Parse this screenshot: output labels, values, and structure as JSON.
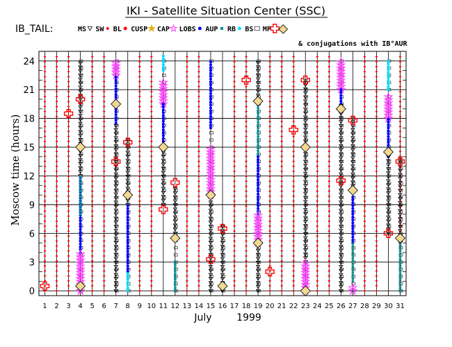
{
  "chart_data": {
    "type": "scatter",
    "title": "IKI - Satellite Situation Center (SSC)",
    "legend_title": "IB_TAIL:",
    "legend": [
      {
        "key": "MS",
        "label": "MS",
        "marker": "triangle-down",
        "color": "#000000"
      },
      {
        "key": "SW",
        "label": "SW",
        "marker": "diamond-small",
        "color": "#ff0000"
      },
      {
        "key": "BL",
        "label": "BL",
        "marker": "dot",
        "color": "#ff0000"
      },
      {
        "key": "CUSP",
        "label": "CUSP",
        "marker": "star",
        "color": "#e0b020"
      },
      {
        "key": "CAP",
        "label": "CAP",
        "marker": "star",
        "color": "#ff40ff"
      },
      {
        "key": "LOBS",
        "label": "LOBS",
        "marker": "dot",
        "color": "#0000ff"
      },
      {
        "key": "AUP",
        "label": "AUP",
        "marker": "square-small",
        "color": "#009090"
      },
      {
        "key": "RB",
        "label": "RB",
        "marker": "dot",
        "color": "#00e0ff"
      },
      {
        "key": "BS",
        "label": "BS",
        "marker": "square-open",
        "color": "#444444"
      },
      {
        "key": "MP",
        "label": "MP",
        "marker": "cross",
        "color": "#ff0000"
      }
    ],
    "conjugation_label": "& conjugations with IB°AUR",
    "ylabel": "Moscow time (hours)",
    "yticks": [
      0,
      3,
      6,
      9,
      12,
      15,
      18,
      21,
      24
    ],
    "ylim": [
      -0.5,
      25
    ],
    "xlim": [
      0.5,
      31.5
    ],
    "xticks": [
      1,
      2,
      3,
      4,
      5,
      6,
      7,
      8,
      9,
      10,
      11,
      12,
      13,
      14,
      15,
      16,
      17,
      18,
      19,
      20,
      21,
      22,
      23,
      24,
      25,
      26,
      27,
      28,
      29,
      30,
      31
    ],
    "xlabel_month": "July",
    "xlabel_year": "1999",
    "sw_days": [
      1,
      2,
      3,
      5,
      6,
      9,
      10,
      13,
      14,
      17,
      18,
      20,
      21,
      22,
      24,
      25,
      28,
      29,
      31
    ],
    "satellite_days": [
      {
        "day": 4,
        "bs": [
          0,
          24
        ],
        "segments": [
          {
            "type": "MS",
            "range": [
              12,
              24
            ]
          },
          {
            "type": "LOBS",
            "range": [
              4,
              12
            ]
          },
          {
            "type": "AUP",
            "range": [
              8,
              12
            ]
          },
          {
            "type": "CAP",
            "range": [
              0,
              4
            ]
          }
        ]
      },
      {
        "day": 7,
        "bs": [
          0,
          24
        ],
        "segments": [
          {
            "type": "CAP",
            "range": [
              22.5,
              24
            ]
          },
          {
            "type": "LOBS",
            "range": [
              17.5,
              22.5
            ]
          },
          {
            "type": "MS",
            "range": [
              0,
              17.5
            ]
          }
        ]
      },
      {
        "day": 8,
        "bs": [
          0,
          16
        ],
        "segments": [
          {
            "type": "MS",
            "range": [
              9,
              16
            ]
          },
          {
            "type": "LOBS",
            "range": [
              2,
              9
            ]
          },
          {
            "type": "RB",
            "range": [
              0,
              2
            ]
          }
        ]
      },
      {
        "day": 11,
        "bs": [
          9,
          24
        ],
        "segments": [
          {
            "type": "RB",
            "range": [
              23,
              24.5
            ]
          },
          {
            "type": "CAP",
            "range": [
              19.5,
              22
            ]
          },
          {
            "type": "LOBS",
            "range": [
              15,
              19.5
            ]
          },
          {
            "type": "MS",
            "range": [
              9,
              15
            ]
          }
        ]
      },
      {
        "day": 12,
        "bs": [
          0,
          11
        ],
        "segments": [
          {
            "type": "MS",
            "range": [
              6,
              11
            ]
          },
          {
            "type": "AUP",
            "range": [
              0,
              3
            ]
          }
        ]
      },
      {
        "day": 15,
        "bs": [
          0,
          24
        ],
        "segments": [
          {
            "type": "LOBS",
            "range": [
              17,
              24
            ]
          },
          {
            "type": "CAP",
            "range": [
              10,
              15
            ]
          },
          {
            "type": "MS",
            "range": [
              0,
              10
            ]
          }
        ]
      },
      {
        "day": 16,
        "bs": [
          0,
          7
        ],
        "segments": [
          {
            "type": "MS",
            "range": [
              0,
              7
            ]
          }
        ]
      },
      {
        "day": 19,
        "bs": [
          0,
          24
        ],
        "segments": [
          {
            "type": "MS",
            "range": [
              20,
              24
            ]
          },
          {
            "type": "AUP",
            "range": [
              14,
              20
            ]
          },
          {
            "type": "LOBS",
            "range": [
              8,
              14
            ]
          },
          {
            "type": "CAP",
            "range": [
              5,
              8
            ]
          },
          {
            "type": "MS",
            "range": [
              0,
              5
            ]
          }
        ]
      },
      {
        "day": 23,
        "bs": [
          0,
          22
        ],
        "segments": [
          {
            "type": "MS",
            "range": [
              3,
              22
            ]
          },
          {
            "type": "CAP",
            "range": [
              0,
              3
            ]
          }
        ]
      },
      {
        "day": 26,
        "bs": [
          0,
          24
        ],
        "segments": [
          {
            "type": "CAP",
            "range": [
              21,
              24
            ]
          },
          {
            "type": "LOBS",
            "range": [
              19.5,
              21
            ]
          },
          {
            "type": "MS",
            "range": [
              0,
              19.5
            ]
          }
        ]
      },
      {
        "day": 27,
        "bs": [
          0,
          18
        ],
        "segments": [
          {
            "type": "MS",
            "range": [
              10.5,
              18
            ]
          },
          {
            "type": "LOBS",
            "range": [
              5,
              10
            ]
          },
          {
            "type": "AUP",
            "range": [
              1,
              5
            ]
          },
          {
            "type": "CAP",
            "range": [
              0,
              0.5
            ]
          }
        ]
      },
      {
        "day": 30,
        "bs": [
          6,
          24
        ],
        "segments": [
          {
            "type": "RB",
            "range": [
              21,
              24
            ]
          },
          {
            "type": "CAP",
            "range": [
              18,
              20.5
            ]
          },
          {
            "type": "LOBS",
            "range": [
              14,
              18
            ]
          },
          {
            "type": "MS",
            "range": [
              6,
              14
            ]
          }
        ]
      },
      {
        "day": 31,
        "bs": [
          0,
          14
        ],
        "segments": [
          {
            "type": "MS",
            "range": [
              5,
              14
            ]
          },
          {
            "type": "AUP",
            "range": [
              0,
              5
            ]
          }
        ]
      }
    ],
    "mp_crossings": [
      {
        "day": 1,
        "time": 0.5
      },
      {
        "day": 3,
        "time": 18.5
      },
      {
        "day": 4,
        "time": 20
      },
      {
        "day": 7,
        "time": 13.5
      },
      {
        "day": 8,
        "time": 15.5
      },
      {
        "day": 11,
        "time": 8.5
      },
      {
        "day": 12,
        "time": 11.3
      },
      {
        "day": 15,
        "time": 3.3
      },
      {
        "day": 16,
        "time": 6.5
      },
      {
        "day": 18,
        "time": 22
      },
      {
        "day": 20,
        "time": 2
      },
      {
        "day": 22,
        "time": 16.8
      },
      {
        "day": 23,
        "time": 22
      },
      {
        "day": 26,
        "time": 11.5
      },
      {
        "day": 27,
        "time": 17.8
      },
      {
        "day": 30,
        "time": 6
      },
      {
        "day": 31,
        "time": 13.5
      }
    ],
    "conjugations": [
      {
        "day": 4,
        "time": 0.5
      },
      {
        "day": 4,
        "time": 15
      },
      {
        "day": 7,
        "time": 19.5
      },
      {
        "day": 8,
        "time": 10
      },
      {
        "day": 11,
        "time": 15
      },
      {
        "day": 12,
        "time": 5.5
      },
      {
        "day": 15,
        "time": 10
      },
      {
        "day": 16,
        "time": 0.5
      },
      {
        "day": 19,
        "time": 5
      },
      {
        "day": 19,
        "time": 19.8
      },
      {
        "day": 23,
        "time": 0
      },
      {
        "day": 23,
        "time": 15
      },
      {
        "day": 26,
        "time": 19
      },
      {
        "day": 27,
        "time": 10.5
      },
      {
        "day": 30,
        "time": 14.5
      },
      {
        "day": 31,
        "time": 5.5
      }
    ]
  }
}
